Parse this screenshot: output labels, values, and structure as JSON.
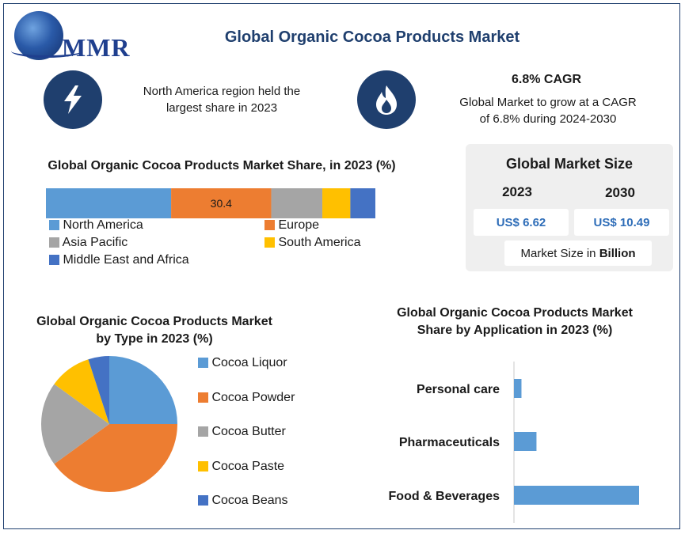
{
  "brand": {
    "logo_text": "MMR"
  },
  "header": {
    "title": "Global Organic Cocoa Products Market"
  },
  "facts": {
    "region": "North America region held the largest share in 2023",
    "cagr_title": "6.8% CAGR",
    "cagr_text": "Global Market to grow at a CAGR of 6.8% during 2024-2030"
  },
  "icons": {
    "fact1": "lightning-icon",
    "fact2": "flame-icon"
  },
  "market_size": {
    "title": "Global Market Size",
    "year1": "2023",
    "year2": "2030",
    "value1": "US$ 6.62",
    "value2": "US$ 10.49",
    "unit_prefix": "Market Size in ",
    "unit_bold": "Billion"
  },
  "colors": {
    "navy": "#1f3f6e",
    "north_america": "#5b9bd5",
    "europe": "#ed7d31",
    "asia_pacific": "#a5a5a5",
    "south_america": "#ffc000",
    "mea": "#4472c4"
  },
  "chart_data": [
    {
      "type": "bar",
      "stacked": true,
      "orientation": "horizontal",
      "title": "Global Organic Cocoa Products Market Share, in 2023 (%)",
      "ylabel": "",
      "xlabel": "",
      "xlim": [
        0,
        100
      ],
      "legend_position": "bottom",
      "series": [
        {
          "name": "North America",
          "values": [
            38
          ],
          "color": "#5b9bd5"
        },
        {
          "name": "Europe",
          "values": [
            30.4
          ],
          "color": "#ed7d31",
          "data_label": "30.4"
        },
        {
          "name": "Asia Pacific",
          "values": [
            15.5
          ],
          "color": "#a5a5a5"
        },
        {
          "name": "South America",
          "values": [
            8.5
          ],
          "color": "#ffc000"
        },
        {
          "name": "Middle East and Africa",
          "values": [
            7.6
          ],
          "color": "#4472c4"
        }
      ]
    },
    {
      "type": "pie",
      "title": "Global Organic Cocoa Products Market by Type in 2023 (%)",
      "legend_position": "right",
      "categories": [
        "Cocoa Liquor",
        "Cocoa Powder",
        "Cocoa Butter",
        "Cocoa Paste",
        "Cocoa Beans"
      ],
      "values": [
        25,
        40,
        20,
        10,
        5
      ],
      "colors": [
        "#5b9bd5",
        "#ed7d31",
        "#a5a5a5",
        "#ffc000",
        "#4472c4"
      ]
    },
    {
      "type": "bar",
      "orientation": "horizontal",
      "title": "Global Organic Cocoa Products Market Share by Application in 2023 (%)",
      "categories": [
        "Personal care",
        "Pharmaceuticals",
        "Food & Beverages"
      ],
      "values": [
        6,
        18,
        100
      ],
      "xlim": [
        0,
        100
      ],
      "grid": false,
      "color": "#5b9bd5"
    }
  ]
}
